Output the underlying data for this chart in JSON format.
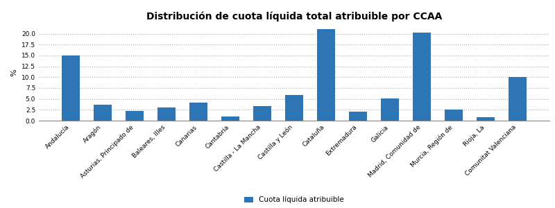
{
  "title": "Distribución de cuota líquida total atribuible por CCAA",
  "categories": [
    "Andalucía",
    "Aragón",
    "Asturias, Principado de",
    "Baleares, Illes",
    "Canarias",
    "Cantabria",
    "Castilla - La Mancha",
    "Castilla y León",
    "Cataluña",
    "Extremadura",
    "Galicia",
    "Madrid, Comunidad de",
    "Murcia, Región de",
    "Rioja, La",
    "Comunitat Valenciana"
  ],
  "values": [
    15.0,
    3.7,
    2.3,
    3.1,
    4.1,
    1.0,
    3.3,
    5.9,
    21.0,
    2.1,
    5.1,
    20.3,
    2.6,
    0.8,
    10.0
  ],
  "bar_color": "#2e75b6",
  "ylabel": "%",
  "ylim": [
    0,
    22
  ],
  "yticks": [
    0.0,
    2.5,
    5.0,
    7.5,
    10.0,
    12.5,
    15.0,
    17.5,
    20.0
  ],
  "legend_label": "Cuota líquida atribuible",
  "grid_color": "#aaaaaa",
  "background_color": "#ffffff",
  "title_fontsize": 10,
  "tick_fontsize": 6.5,
  "ylabel_fontsize": 8,
  "legend_fontsize": 7.5
}
